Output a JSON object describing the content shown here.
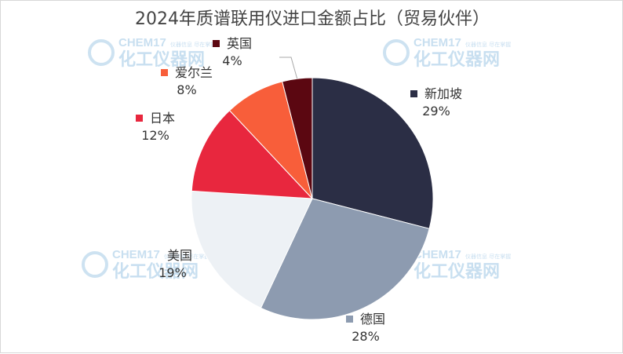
{
  "chart_data": {
    "type": "pie",
    "title": "2024年质谱联用仪进口金额占比（贸易伙伴）",
    "series": [
      {
        "name": "新加坡",
        "value": 29,
        "label": "29%",
        "color": "#2b2e45"
      },
      {
        "name": "德国",
        "value": 28,
        "label": "28%",
        "color": "#8d9bb0"
      },
      {
        "name": "美国",
        "value": 19,
        "label": "19%",
        "color": "#edf1f5"
      },
      {
        "name": "日本",
        "value": 12,
        "label": "12%",
        "color": "#e8273e"
      },
      {
        "name": "爱尔兰",
        "value": 8,
        "label": "8%",
        "color": "#f85e3a"
      },
      {
        "name": "英国",
        "value": 4,
        "label": "4%",
        "color": "#5b0711"
      }
    ],
    "legend": "inline-labels"
  },
  "watermark": {
    "brand_en": "CHEM17",
    "brand_cn": "化工仪器网",
    "tagline": "仪器信息 尽在掌握"
  }
}
